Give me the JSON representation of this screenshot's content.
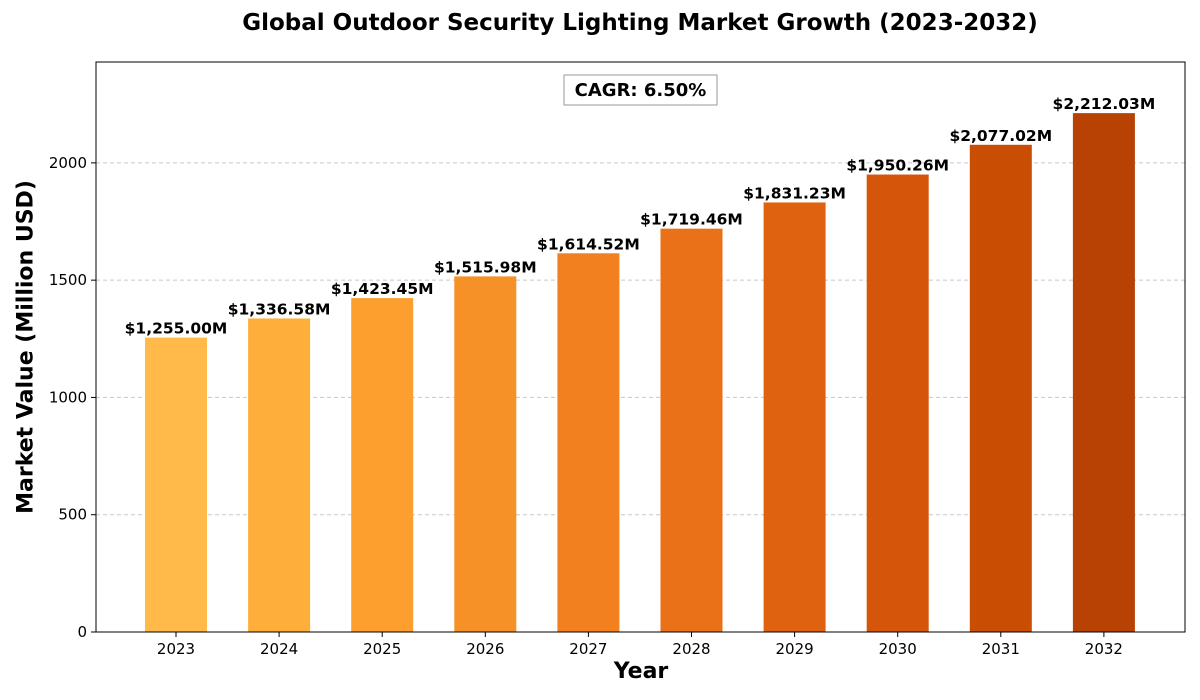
{
  "chart_data": {
    "type": "bar",
    "title": "Global Outdoor Security Lighting Market Growth (2023-2032)",
    "xlabel": "Year",
    "ylabel": "Market Value (Million USD)",
    "categories": [
      "2023",
      "2024",
      "2025",
      "2026",
      "2027",
      "2028",
      "2029",
      "2030",
      "2031",
      "2032"
    ],
    "values": [
      1255.0,
      1336.58,
      1423.45,
      1515.98,
      1614.52,
      1719.46,
      1831.23,
      1950.26,
      2077.02,
      2212.03
    ],
    "value_labels": [
      "$1,255.00M",
      "$1,336.58M",
      "$1,423.45M",
      "$1,515.98M",
      "$1,614.52M",
      "$1,719.46M",
      "$1,831.23M",
      "$1,950.26M",
      "$2,077.02M",
      "$2,212.03M"
    ],
    "ylim": [
      0,
      2430
    ],
    "yticks": [
      0,
      500,
      1000,
      1500,
      2000
    ],
    "annotation": "CAGR: 6.50%",
    "grid": "y-dashed",
    "bar_colors": [
      "#ffba49",
      "#feae3b",
      "#fd9f2f",
      "#f69128",
      "#f2801f",
      "#ea7117",
      "#df6210",
      "#d5550a",
      "#c94d03",
      "#b74203"
    ]
  }
}
